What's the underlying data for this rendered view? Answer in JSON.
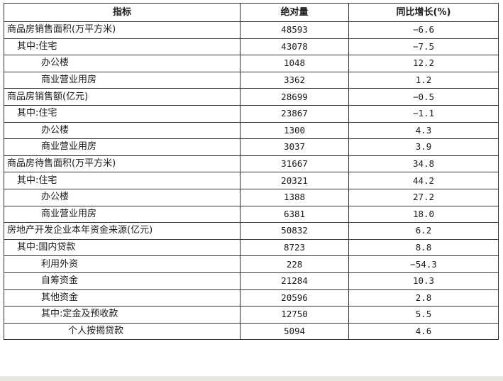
{
  "table": {
    "headers": [
      "指标",
      "绝对量",
      "同比增长(%)"
    ],
    "rows": [
      {
        "label": "商品房销售面积(万平方米)",
        "level": 0,
        "value": "48593",
        "growth": "−6.6"
      },
      {
        "label": "其中:住宅",
        "level": 1,
        "value": "43078",
        "growth": "−7.5"
      },
      {
        "label": "办公楼",
        "level": 2,
        "value": "1048",
        "growth": "12.2"
      },
      {
        "label": "商业营业用房",
        "level": 2,
        "value": "3362",
        "growth": "1.2"
      },
      {
        "label": "商品房销售额(亿元)",
        "level": 0,
        "value": "28699",
        "growth": "−0.5"
      },
      {
        "label": "其中:住宅",
        "level": 1,
        "value": "23867",
        "growth": "−1.1"
      },
      {
        "label": "办公楼",
        "level": 2,
        "value": "1300",
        "growth": "4.3"
      },
      {
        "label": "商业营业用房",
        "level": 2,
        "value": "3037",
        "growth": "3.9"
      },
      {
        "label": "商品房待售面积(万平方米)",
        "level": 0,
        "value": "31667",
        "growth": "34.8"
      },
      {
        "label": "其中:住宅",
        "level": 1,
        "value": "20321",
        "growth": "44.2"
      },
      {
        "label": "办公楼",
        "level": 2,
        "value": "1388",
        "growth": "27.2"
      },
      {
        "label": "商业营业用房",
        "level": 2,
        "value": "6381",
        "growth": "18.0"
      },
      {
        "label": "房地产开发企业本年资金来源(亿元)",
        "level": 0,
        "value": "50832",
        "growth": "6.2"
      },
      {
        "label": "其中:国内贷款",
        "level": 1,
        "value": "8723",
        "growth": "8.8"
      },
      {
        "label": "利用外资",
        "level": 2,
        "value": "228",
        "growth": "−54.3"
      },
      {
        "label": "自筹资金",
        "level": 2,
        "value": "21284",
        "growth": "10.3"
      },
      {
        "label": "其他资金",
        "level": 2,
        "value": "20596",
        "growth": "2.8"
      },
      {
        "label": "其中:定金及预收款",
        "level": 2,
        "value": "12750",
        "growth": "5.5"
      },
      {
        "label": "个人按揭贷款",
        "level": 3,
        "value": "5094",
        "growth": "4.6"
      }
    ]
  }
}
